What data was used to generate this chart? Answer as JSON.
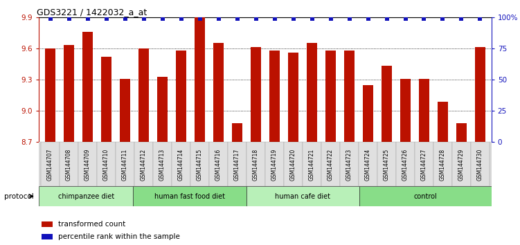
{
  "title": "GDS3221 / 1422032_a_at",
  "samples": [
    "GSM144707",
    "GSM144708",
    "GSM144709",
    "GSM144710",
    "GSM144711",
    "GSM144712",
    "GSM144713",
    "GSM144714",
    "GSM144715",
    "GSM144716",
    "GSM144717",
    "GSM144718",
    "GSM144719",
    "GSM144720",
    "GSM144721",
    "GSM144722",
    "GSM144723",
    "GSM144724",
    "GSM144725",
    "GSM144726",
    "GSM144727",
    "GSM144728",
    "GSM144729",
    "GSM144730"
  ],
  "values": [
    9.6,
    9.63,
    9.76,
    9.52,
    9.31,
    9.6,
    9.33,
    9.58,
    9.9,
    9.65,
    8.88,
    9.61,
    9.58,
    9.56,
    9.65,
    9.58,
    9.58,
    9.25,
    9.43,
    9.31,
    9.31,
    9.09,
    8.88,
    9.61
  ],
  "groups": [
    {
      "label": "chimpanzee diet",
      "start": 0,
      "end": 5,
      "color": "#b8f0b8"
    },
    {
      "label": "human fast food diet",
      "start": 5,
      "end": 11,
      "color": "#88dd88"
    },
    {
      "label": "human cafe diet",
      "start": 11,
      "end": 17,
      "color": "#b8f0b8"
    },
    {
      "label": "control",
      "start": 17,
      "end": 24,
      "color": "#88dd88"
    }
  ],
  "bar_color": "#bb1100",
  "percentile_color": "#1111bb",
  "ylim_left": [
    8.7,
    9.9
  ],
  "ylim_right": [
    0,
    100
  ],
  "yticks_left": [
    8.7,
    9.0,
    9.3,
    9.6,
    9.9
  ],
  "yticks_right": [
    0,
    25,
    50,
    75,
    100
  ],
  "grid_lines": [
    9.0,
    9.3,
    9.6
  ],
  "bar_width": 0.55,
  "legend_items": [
    {
      "color": "#bb1100",
      "label": "transformed count"
    },
    {
      "color": "#1111bb",
      "label": "percentile rank within the sample"
    }
  ],
  "protocol_label": "protocol"
}
